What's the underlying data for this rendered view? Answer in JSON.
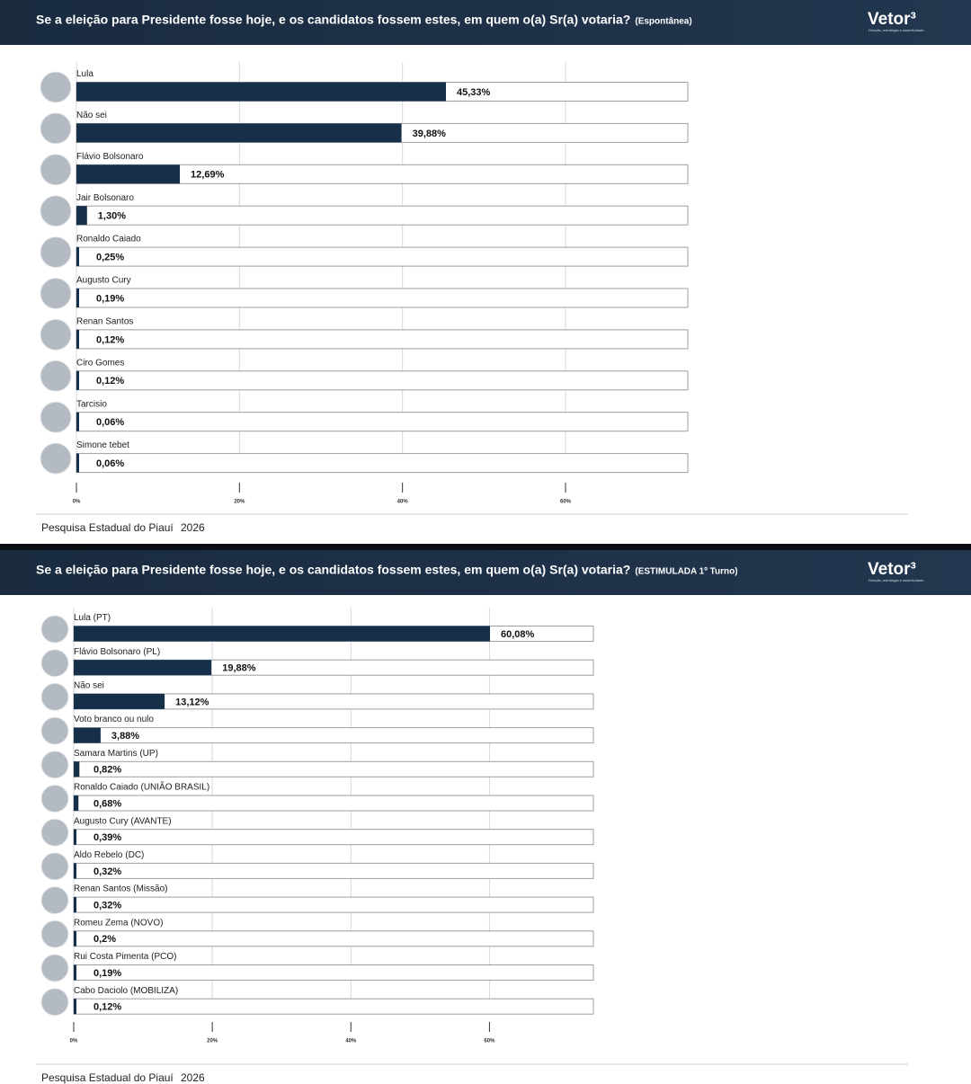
{
  "chart_data": [
    {
      "type": "bar",
      "orientation": "horizontal",
      "title": "Se a eleição para Presidente fosse hoje, e os candidatos fossem estes, em quem o(a) Sr(a) votaria?",
      "subtitle": "(Espontânea)",
      "brand": "Vetor³",
      "brand_tagline": "Direção, estratégia e assertividade",
      "categories": [
        "Lula",
        "Não sei",
        "Flávio Bolsonaro",
        "Jair Bolsonaro",
        "Ronaldo Caiado",
        "Augusto Cury",
        "Renan Santos",
        "Ciro Gomes",
        "Tarcisio",
        "Simone tebet"
      ],
      "values": [
        45.33,
        39.88,
        12.69,
        1.3,
        0.25,
        0.19,
        0.12,
        0.12,
        0.06,
        0.06
      ],
      "value_labels": [
        "45,33%",
        "39,88%",
        "12,69%",
        "1,30%",
        "0,25%",
        "0,19%",
        "0,12%",
        "0,12%",
        "0,06%",
        "0,06%"
      ],
      "color": "#17304a",
      "xlim": [
        0,
        75
      ],
      "xticks": [
        {
          "value": 0,
          "label": "0%"
        },
        {
          "value": 20,
          "label": "20%"
        },
        {
          "value": 40,
          "label": "40%"
        },
        {
          "value": 60,
          "label": "60%"
        }
      ],
      "grid": true,
      "source": "Pesquisa Estadual do Piauí",
      "year": "2026"
    },
    {
      "type": "bar",
      "orientation": "horizontal",
      "title": "Se a eleição para Presidente fosse hoje, e os candidatos fossem estes, em quem o(a) Sr(a) votaria?",
      "subtitle": "(ESTIMULADA 1º Turno)",
      "brand": "Vetor³",
      "brand_tagline": "Direção, estratégia e assertividade",
      "categories": [
        "Lula (PT)",
        "Flávio Bolsonaro (PL)",
        "Não sei",
        "Voto branco ou nulo",
        "Samara Martins (UP)",
        "Ronaldo Caiado (UNIÃO BRASIL)",
        "Augusto Cury (AVANTE)",
        "Aldo Rebelo (DC)",
        "Renan Santos (Missão)",
        "Romeu Zema (NOVO)",
        "Rui Costa Pimenta (PCO)",
        "Cabo Daciolo (MOBILIZA)"
      ],
      "values": [
        60.08,
        19.88,
        13.12,
        3.88,
        0.82,
        0.68,
        0.39,
        0.32,
        0.32,
        0.2,
        0.19,
        0.12
      ],
      "value_labels": [
        "60,08%",
        "19,88%",
        "13,12%",
        "3,88%",
        "0,82%",
        "0,68%",
        "0,39%",
        "0,32%",
        "0,32%",
        "0,2%",
        "0,19%",
        "0,12%"
      ],
      "color": "#17304a",
      "xlim": [
        0,
        75
      ],
      "xticks": [
        {
          "value": 0,
          "label": "0%"
        },
        {
          "value": 20,
          "label": "20%"
        },
        {
          "value": 40,
          "label": "40%"
        },
        {
          "value": 60,
          "label": "60%"
        }
      ],
      "grid": true,
      "source": "Pesquisa Estadual do Piauí",
      "year": "2026"
    }
  ]
}
